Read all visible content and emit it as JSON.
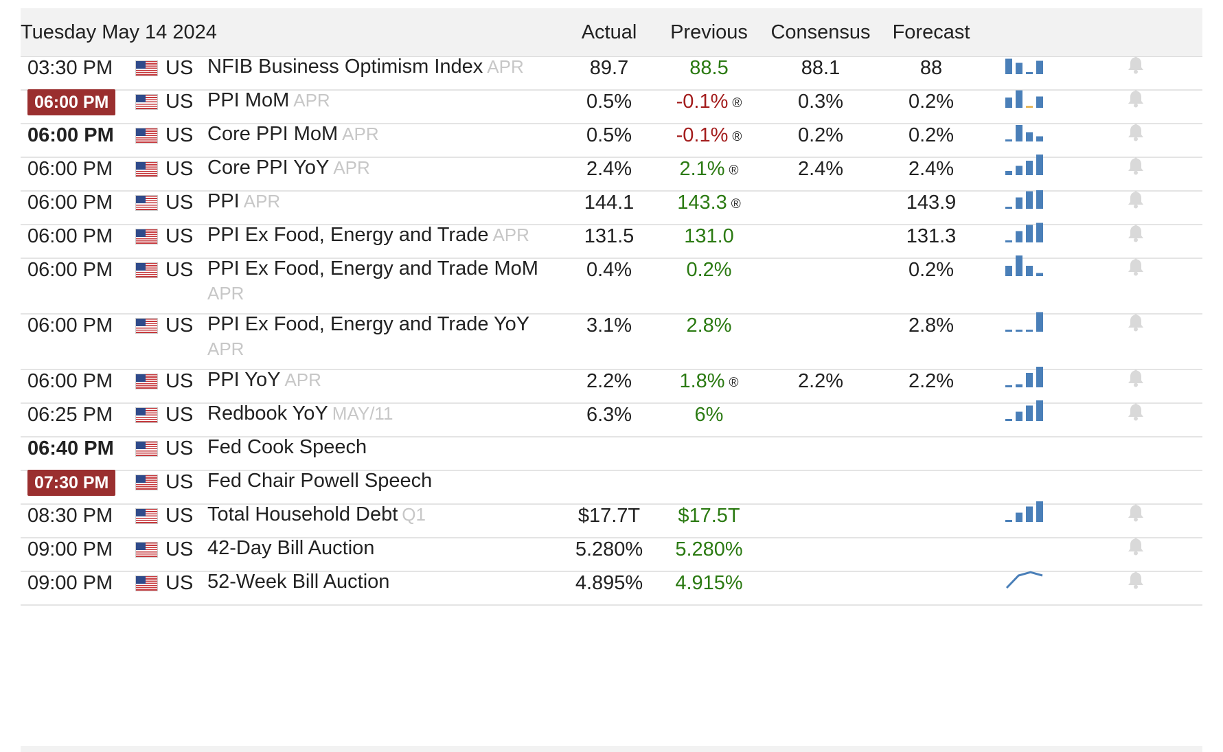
{
  "header": {
    "date": "Tuesday May 14 2024",
    "actual": "Actual",
    "previous": "Previous",
    "consensus": "Consensus",
    "forecast": "Forecast"
  },
  "colors": {
    "badge": "#9a2f2f",
    "positive": "#2b7a12",
    "negative": "#a31d1d",
    "spark": "#4a7fb8"
  },
  "rows": [
    {
      "time": "03:30 PM",
      "time_style": "normal",
      "country": "US",
      "event": "NFIB Business Optimism Index",
      "period": "APR",
      "actual": "89.7",
      "previous": "88.5",
      "previous_color": "green",
      "revised": false,
      "consensus": "88.1",
      "forecast": "88",
      "spark": [
        0.75,
        0.55,
        0.06,
        0.65
      ],
      "spark_type": "bar",
      "bell": true
    },
    {
      "time": "06:00 PM",
      "time_style": "badge",
      "country": "US",
      "event": "PPI MoM",
      "period": "APR",
      "actual": "0.5%",
      "previous": "-0.1%",
      "previous_color": "red",
      "revised": true,
      "consensus": "0.3%",
      "forecast": "0.2%",
      "spark": [
        0.5,
        0.85,
        0.06,
        0.55
      ],
      "spark_type": "bar",
      "bell": true
    },
    {
      "time": "06:00 PM",
      "time_style": "bold",
      "country": "US",
      "event": "Core PPI MoM",
      "period": "APR",
      "actual": "0.5%",
      "previous": "-0.1%",
      "previous_color": "red",
      "revised": true,
      "consensus": "0.2%",
      "forecast": "0.2%",
      "spark": [
        0.0,
        0.8,
        0.45,
        0.25
      ],
      "spark_type": "bar",
      "bell": true
    },
    {
      "time": "06:00 PM",
      "time_style": "normal",
      "country": "US",
      "event": "Core PPI YoY",
      "period": "APR",
      "actual": "2.4%",
      "previous": "2.1%",
      "previous_color": "green",
      "revised": true,
      "consensus": "2.4%",
      "forecast": "2.4%",
      "spark": [
        0.2,
        0.45,
        0.7,
        1.0
      ],
      "spark_type": "bar",
      "bell": true
    },
    {
      "time": "06:00 PM",
      "time_style": "normal",
      "country": "US",
      "event": "PPI",
      "period": "APR",
      "actual": "144.1",
      "previous": "143.3",
      "previous_color": "green",
      "revised": true,
      "consensus": "",
      "forecast": "143.9",
      "spark": [
        0.08,
        0.55,
        0.85,
        0.9
      ],
      "spark_type": "bar",
      "bell": true
    },
    {
      "time": "06:00 PM",
      "time_style": "normal",
      "country": "US",
      "event": "PPI Ex Food, Energy and Trade",
      "period": "APR",
      "actual": "131.5",
      "previous": "131.0",
      "previous_color": "green",
      "revised": false,
      "consensus": "",
      "forecast": "131.3",
      "spark": [
        0.08,
        0.55,
        0.85,
        0.95
      ],
      "spark_type": "bar",
      "bell": true
    },
    {
      "time": "06:00 PM",
      "time_style": "normal",
      "country": "US",
      "event": "PPI Ex Food, Energy and Trade MoM",
      "period": "APR",
      "actual": "0.4%",
      "previous": "0.2%",
      "previous_color": "green",
      "revised": false,
      "consensus": "",
      "forecast": "0.2%",
      "spark": [
        0.5,
        1.0,
        0.5,
        0.15
      ],
      "spark_type": "bar",
      "bell": true
    },
    {
      "time": "06:00 PM",
      "time_style": "normal",
      "country": "US",
      "event": "PPI Ex Food, Energy and Trade YoY",
      "period": "APR",
      "actual": "3.1%",
      "previous": "2.8%",
      "previous_color": "green",
      "revised": false,
      "consensus": "",
      "forecast": "2.8%",
      "spark": [
        0.08,
        0.08,
        0.08,
        0.95
      ],
      "spark_type": "bar",
      "bell": true
    },
    {
      "time": "06:00 PM",
      "time_style": "normal",
      "country": "US",
      "event": "PPI YoY",
      "period": "APR",
      "actual": "2.2%",
      "previous": "1.8%",
      "previous_color": "green",
      "revised": true,
      "consensus": "2.2%",
      "forecast": "2.2%",
      "spark": [
        0.1,
        0.15,
        0.7,
        1.0
      ],
      "spark_type": "bar",
      "bell": true
    },
    {
      "time": "06:25 PM",
      "time_style": "normal",
      "country": "US",
      "event": "Redbook YoY",
      "period": "MAY/11",
      "actual": "6.3%",
      "previous": "6%",
      "previous_color": "green",
      "revised": false,
      "consensus": "",
      "forecast": "",
      "spark": [
        0.08,
        0.45,
        0.75,
        1.0
      ],
      "spark_type": "bar",
      "bell": true
    },
    {
      "time": "06:40 PM",
      "time_style": "bold",
      "country": "US",
      "event": "Fed Cook Speech",
      "period": "",
      "actual": "",
      "previous": "",
      "previous_color": "green",
      "revised": false,
      "consensus": "",
      "forecast": "",
      "spark": [],
      "spark_type": "none",
      "bell": false
    },
    {
      "time": "07:30 PM",
      "time_style": "badge",
      "country": "US",
      "event": "Fed Chair Powell Speech",
      "period": "",
      "actual": "",
      "previous": "",
      "previous_color": "green",
      "revised": false,
      "consensus": "",
      "forecast": "",
      "spark": [],
      "spark_type": "none",
      "bell": false
    },
    {
      "time": "08:30 PM",
      "time_style": "normal",
      "country": "US",
      "event": "Total Household Debt",
      "period": "Q1",
      "actual": "$17.7T",
      "previous": "$17.5T",
      "previous_color": "green",
      "revised": false,
      "consensus": "",
      "forecast": "",
      "spark": [
        0.08,
        0.45,
        0.75,
        1.0
      ],
      "spark_type": "bar",
      "bell": true
    },
    {
      "time": "09:00 PM",
      "time_style": "normal",
      "country": "US",
      "event": "42-Day Bill Auction",
      "period": "",
      "actual": "5.280%",
      "previous": "5.280%",
      "previous_color": "green",
      "revised": false,
      "consensus": "",
      "forecast": "",
      "spark": [],
      "spark_type": "none",
      "bell": true
    },
    {
      "time": "09:00 PM",
      "time_style": "normal",
      "country": "US",
      "event": "52-Week Bill Auction",
      "period": "",
      "actual": "4.895%",
      "previous": "4.915%",
      "previous_color": "green",
      "revised": false,
      "consensus": "",
      "forecast": "",
      "spark": [
        0.0,
        0.75,
        0.95,
        0.75
      ],
      "spark_type": "line",
      "bell": true
    }
  ]
}
